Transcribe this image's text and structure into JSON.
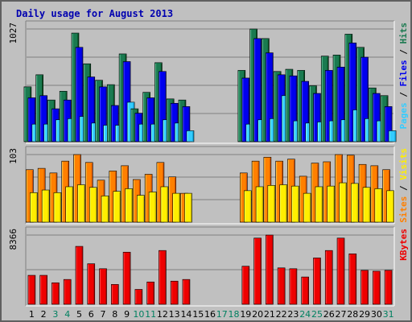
{
  "chart_data": {
    "type": "bar",
    "title": "Daily usage for August 2013",
    "categories": [
      "1",
      "2",
      "3",
      "4",
      "5",
      "6",
      "7",
      "8",
      "9",
      "10",
      "11",
      "12",
      "13",
      "14",
      "15",
      "16",
      "17",
      "18",
      "19",
      "20",
      "21",
      "22",
      "23",
      "24",
      "25",
      "26",
      "27",
      "28",
      "29",
      "30",
      "31"
    ],
    "weekend_days": [
      "3",
      "4",
      "10",
      "11",
      "17",
      "18",
      "24",
      "25",
      "31"
    ],
    "colors": {
      "weekday_label": "#000000",
      "weekend_label": "#008060",
      "hits": "#1a7a50",
      "files": "#0000ee",
      "pages": "#33ccff",
      "visits": "#ff8000",
      "sites": "#ffee00",
      "kbytes": "#ee0000",
      "title": "#0000b0"
    },
    "panels": [
      {
        "id": "hits-files-pages",
        "scale_label": "1027",
        "ymax": 1027,
        "right_label_parts": [
          {
            "text": "Pages",
            "color": "#33ccff"
          },
          {
            "text": " / ",
            "color": "#000000"
          },
          {
            "text": "Files",
            "color": "#0000ee"
          },
          {
            "text": " / ",
            "color": "#000000"
          },
          {
            "text": "Hits",
            "color": "#1a7a50"
          }
        ],
        "series": [
          {
            "name": "Hits",
            "values": [
              500,
              610,
              380,
              460,
              990,
              710,
              560,
              520,
              800,
              300,
              450,
              720,
              390,
              380,
              0,
              0,
              0,
              0,
              650,
              1027,
              940,
              640,
              660,
              650,
              510,
              780,
              790,
              980,
              860,
              490,
              420
            ]
          },
          {
            "name": "Files",
            "values": [
              400,
              420,
              300,
              380,
              860,
              590,
              500,
              330,
              730,
              260,
              400,
              640,
              350,
              320,
              0,
              0,
              0,
              0,
              580,
              940,
              810,
              610,
              600,
              550,
              440,
              650,
              680,
              900,
              770,
              440,
              320
            ]
          },
          {
            "name": "Pages",
            "values": [
              160,
              160,
              200,
              210,
              230,
              170,
              150,
              150,
              360,
              160,
              160,
              200,
              170,
              100,
              0,
              0,
              0,
              0,
              160,
              200,
              210,
              420,
              190,
              170,
              180,
              190,
              200,
              290,
              210,
              190,
              100
            ]
          }
        ]
      },
      {
        "id": "visits-sites",
        "scale_label": "103",
        "ymax": 103,
        "right_label_parts": [
          {
            "text": "Sites",
            "color": "#ff8000"
          },
          {
            "text": " / ",
            "color": "#000000"
          },
          {
            "text": "Visits",
            "color": "#ffee00"
          }
        ],
        "series": [
          {
            "name": "Visits",
            "values": [
              80,
              82,
              75,
              93,
              103,
              91,
              64,
              78,
              86,
              65,
              73,
              91,
              69,
              44,
              0,
              0,
              0,
              0,
              75,
              93,
              99,
              93,
              96,
              70,
              90,
              92,
              103,
              102,
              88,
              86,
              80
            ]
          },
          {
            "name": "Sites",
            "values": [
              45,
              49,
              45,
              54,
              57,
              53,
              40,
              47,
              51,
              41,
              46,
              54,
              44,
              44,
              0,
              0,
              0,
              0,
              48,
              54,
              56,
              57,
              55,
              44,
              54,
              55,
              60,
              59,
              53,
              51,
              48
            ]
          }
        ]
      },
      {
        "id": "kbytes",
        "scale_label": "8366",
        "ymax": 8366,
        "right_label_parts": [
          {
            "text": "KBytes",
            "color": "#ee0000"
          }
        ],
        "series": [
          {
            "name": "KBytes",
            "values": [
              3500,
              3500,
              2600,
              3000,
              7000,
              4900,
              4300,
              2400,
              6300,
              1800,
              2700,
              6500,
              2800,
              3000,
              0,
              0,
              0,
              0,
              4600,
              8000,
              8366,
              4400,
              4300,
              3300,
              5600,
              6500,
              8000,
              6100,
              4100,
              4000,
              4100
            ]
          }
        ]
      }
    ]
  }
}
